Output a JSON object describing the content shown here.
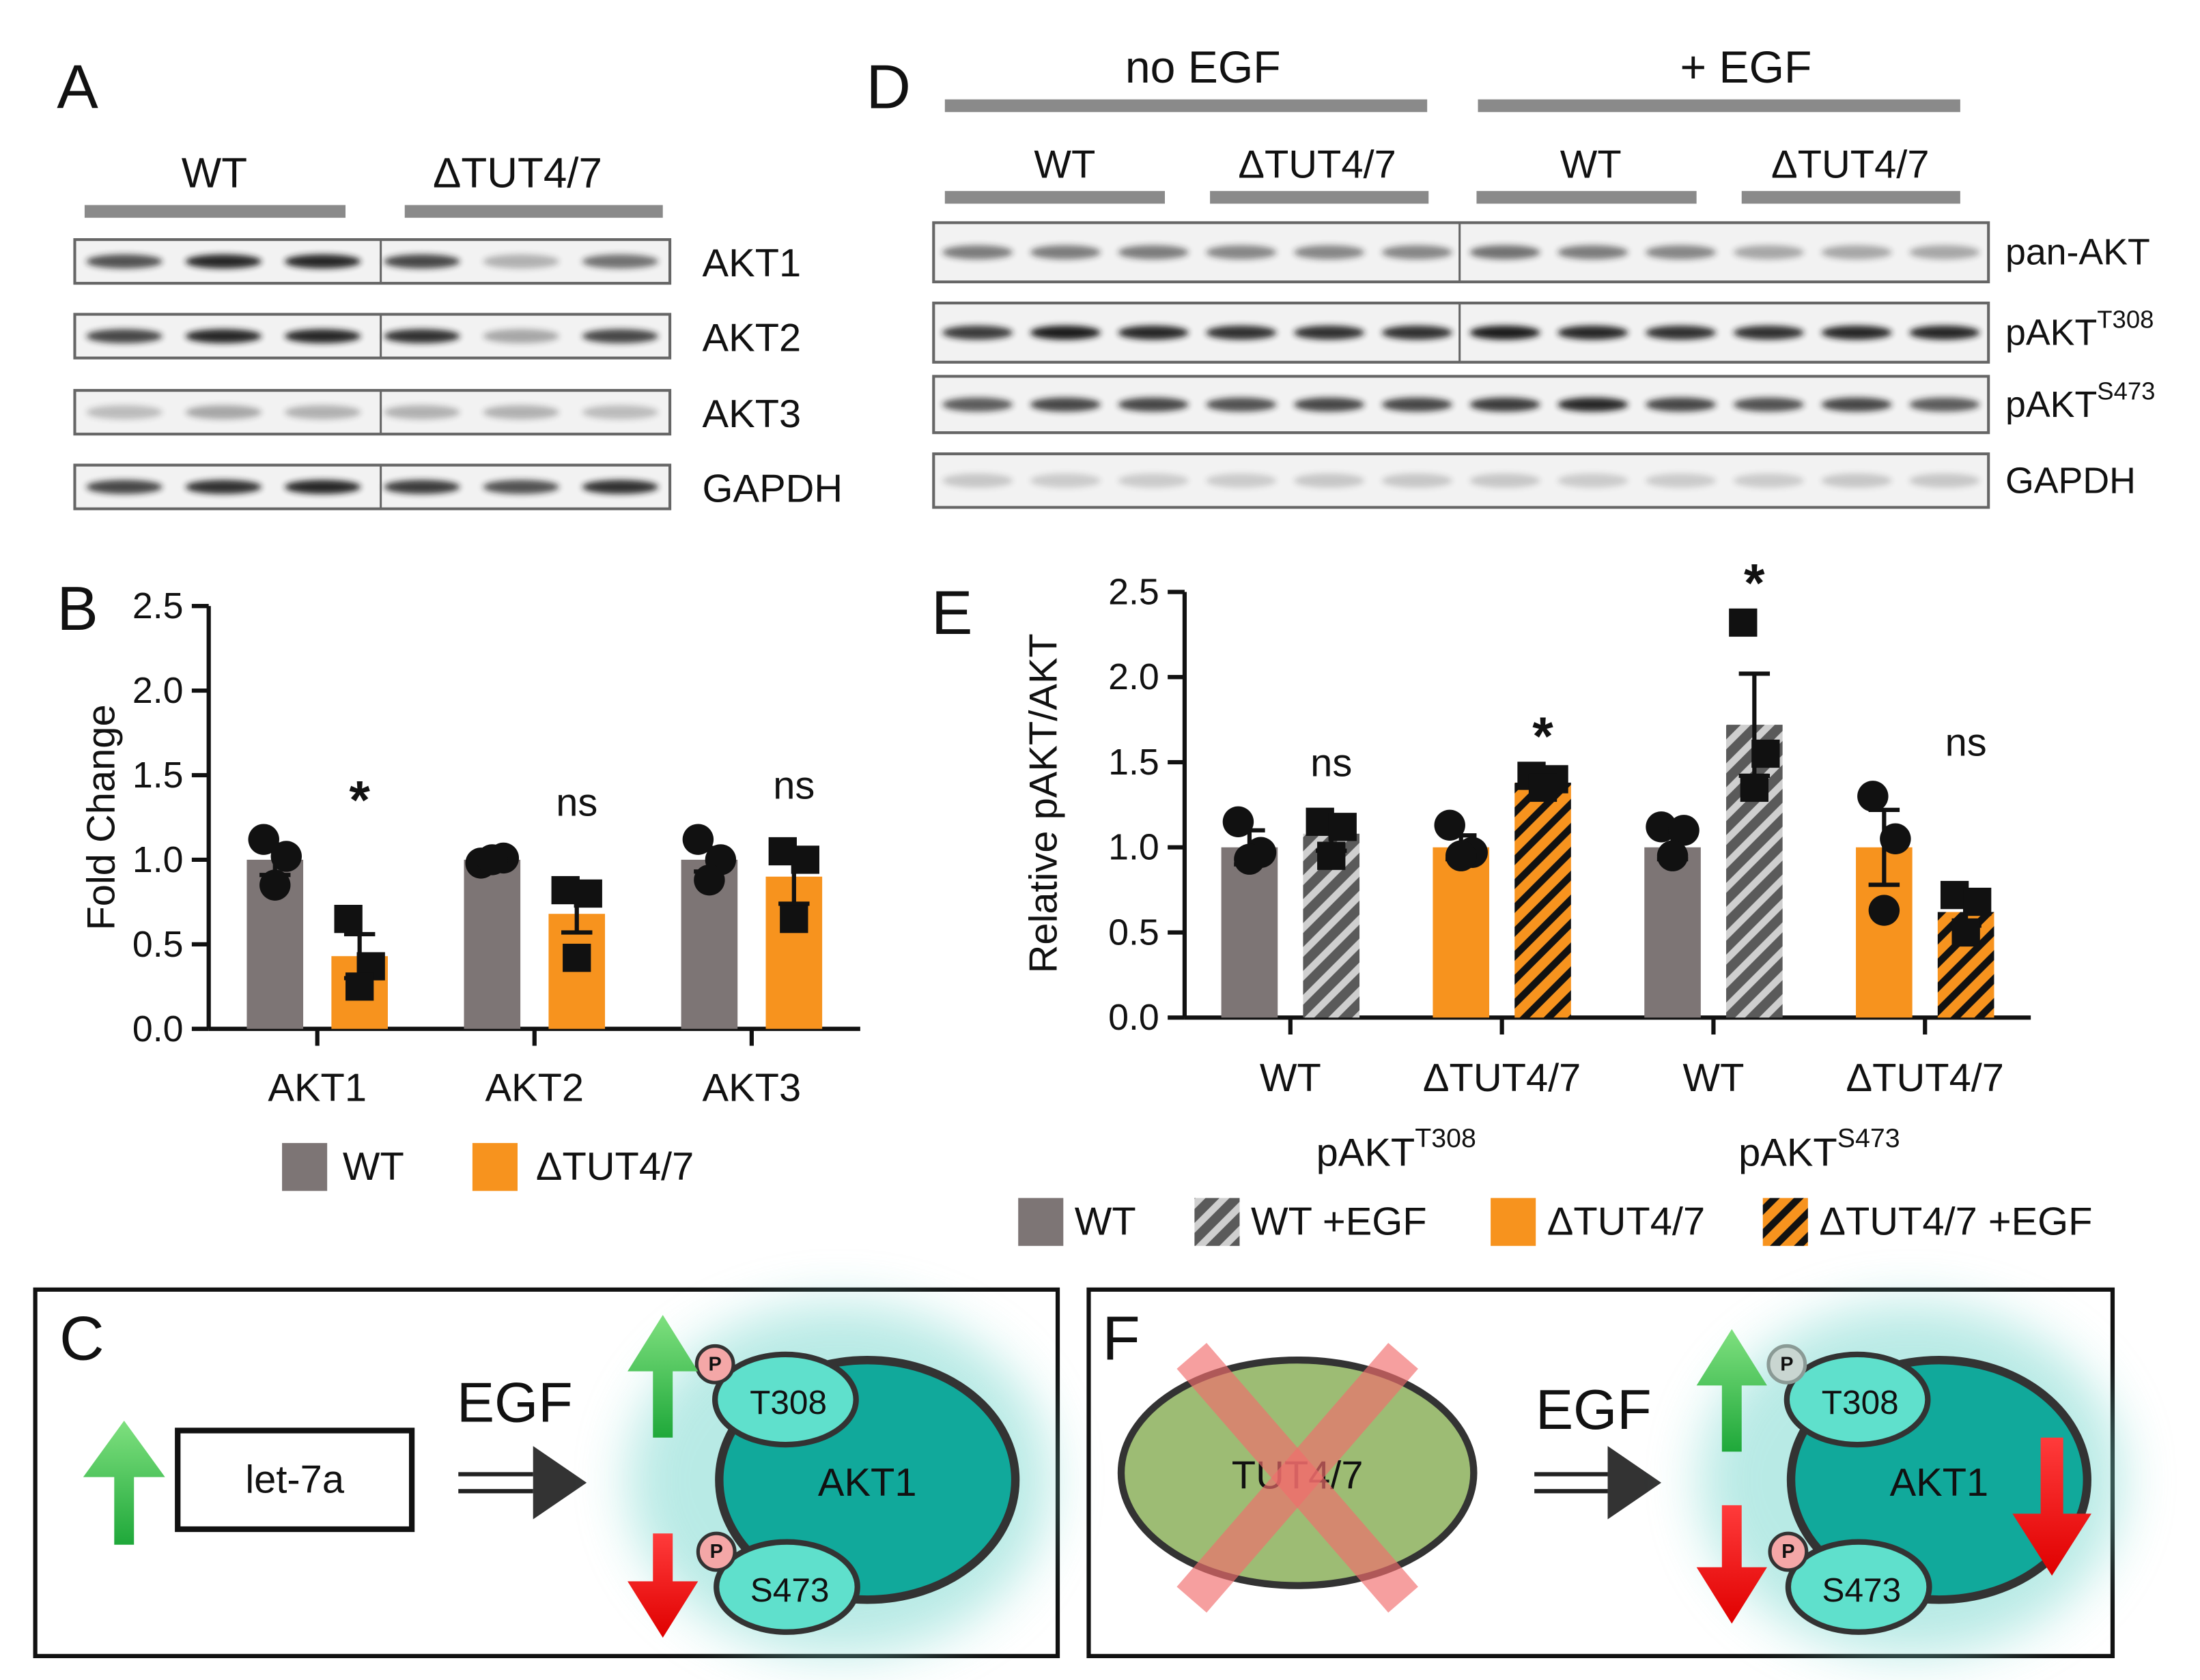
{
  "panels": {
    "A": {
      "label": "A",
      "groups": [
        "WT",
        "ΔTUT4/7"
      ],
      "rows": [
        "AKT1",
        "AKT2",
        "AKT3",
        "GAPDH"
      ]
    },
    "D": {
      "label": "D",
      "conditions": [
        "no EGF",
        "+ EGF"
      ],
      "groups": [
        "WT",
        "ΔTUT4/7",
        "WT",
        "ΔTUT4/7"
      ],
      "rows": [
        {
          "text": "pan-AKT"
        },
        {
          "text": "pAKT",
          "sup": "T308"
        },
        {
          "text": "pAKT",
          "sup": "S473"
        },
        {
          "text": "GAPDH"
        }
      ]
    },
    "C": {
      "label": "C",
      "mirna": "let-7a",
      "stimulus": "EGF",
      "protein": "AKT1",
      "sites": [
        "T308",
        "S473"
      ],
      "phospho": "P"
    },
    "F": {
      "label": "F",
      "knockout": "TUT4/7",
      "stimulus": "EGF",
      "protein": "AKT1",
      "sites": [
        "T308",
        "S473"
      ],
      "phospho": "P"
    }
  },
  "chart_data": [
    {
      "type": "bar",
      "label": "B",
      "ylabel": "Fold Change",
      "categories": [
        "AKT1",
        "AKT2",
        "AKT3"
      ],
      "series": [
        {
          "name": "WT",
          "color": "#7d7575",
          "marker": "circle",
          "values": [
            1.0,
            1.0,
            1.0
          ],
          "errors": [
            0.09,
            0.02,
            0.07
          ],
          "points": [
            [
              1.12,
              1.02,
              0.85
            ],
            [
              0.98,
              1.01,
              1.0
            ],
            [
              1.12,
              1.0,
              0.88
            ]
          ]
        },
        {
          "name": "ΔTUT4/7",
          "color": "#f7931e",
          "marker": "square",
          "values": [
            0.43,
            0.68,
            0.9
          ],
          "errors": [
            0.13,
            0.11,
            0.16
          ],
          "points": [
            [
              0.65,
              0.37,
              0.25
            ],
            [
              0.82,
              0.8,
              0.42
            ],
            [
              1.05,
              1.0,
              0.65
            ]
          ]
        }
      ],
      "annotations": [
        "*",
        "ns",
        "ns"
      ],
      "ylim": [
        0,
        2.5
      ],
      "yticks": [
        {
          "value": 0,
          "label": "0.0"
        },
        {
          "value": 0.5,
          "label": "0.5"
        },
        {
          "value": 1,
          "label": "1.0"
        },
        {
          "value": 1.5,
          "label": "1.5"
        },
        {
          "value": 2,
          "label": "2.0"
        },
        {
          "value": 2.5,
          "label": "2.5"
        }
      ]
    },
    {
      "type": "bar",
      "label": "E",
      "ylabel": "Relative pAKT/AKT",
      "categories": [
        "WT",
        "ΔTUT4/7",
        "WT",
        "ΔTUT4/7"
      ],
      "groups": [
        {
          "text": "pAKT",
          "sup": "T308"
        },
        {
          "text": "pAKT",
          "sup": "S473"
        }
      ],
      "series": [
        {
          "name": "WT",
          "color": "#7d7575",
          "hatch": false,
          "marker": "circle",
          "values": [
            1.0,
            null,
            1.0,
            null
          ],
          "errors": [
            0.1,
            null,
            0.07,
            null
          ],
          "points": [
            [
              1.15,
              0.97,
              0.93
            ],
            null,
            [
              1.12,
              1.1,
              0.95
            ],
            null
          ]
        },
        {
          "name": "WT +EGF",
          "color": "#5a5a5a",
          "hatch": true,
          "marker": "square",
          "values": [
            1.08,
            null,
            1.72,
            null
          ],
          "errors": [
            0.1,
            null,
            0.3,
            null
          ],
          "points": [
            [
              1.15,
              1.12,
              0.95
            ],
            null,
            [
              2.32,
              1.55,
              1.35
            ],
            null
          ]
        },
        {
          "name": "ΔTUT4/7",
          "color": "#f7931e",
          "hatch": false,
          "marker": "circle",
          "values": [
            null,
            1.0,
            null,
            1.0
          ],
          "errors": [
            null,
            0.07,
            null,
            0.22
          ],
          "points": [
            null,
            [
              1.13,
              0.97,
              0.95
            ],
            null,
            [
              1.3,
              1.05,
              0.63
            ]
          ]
        },
        {
          "name": "ΔTUT4/7 +EGF",
          "color": "#f7931e",
          "hatch": true,
          "marker": "square",
          "values": [
            null,
            1.38,
            null,
            0.62
          ],
          "errors": [
            null,
            0.03,
            null,
            0.08
          ],
          "points": [
            null,
            [
              1.42,
              1.4,
              1.35
            ],
            null,
            [
              0.72,
              0.68,
              0.5
            ]
          ]
        }
      ],
      "annotations": [
        "ns",
        "*",
        "*",
        "ns"
      ],
      "ylim": [
        0,
        2.5
      ],
      "yticks": [
        {
          "value": 0,
          "label": "0.0"
        },
        {
          "value": 0.5,
          "label": "0.5"
        },
        {
          "value": 1,
          "label": "1.0"
        },
        {
          "value": 1.5,
          "label": "1.5"
        },
        {
          "value": 2,
          "label": "2.0"
        },
        {
          "value": 2.5,
          "label": "2.5"
        }
      ]
    }
  ]
}
